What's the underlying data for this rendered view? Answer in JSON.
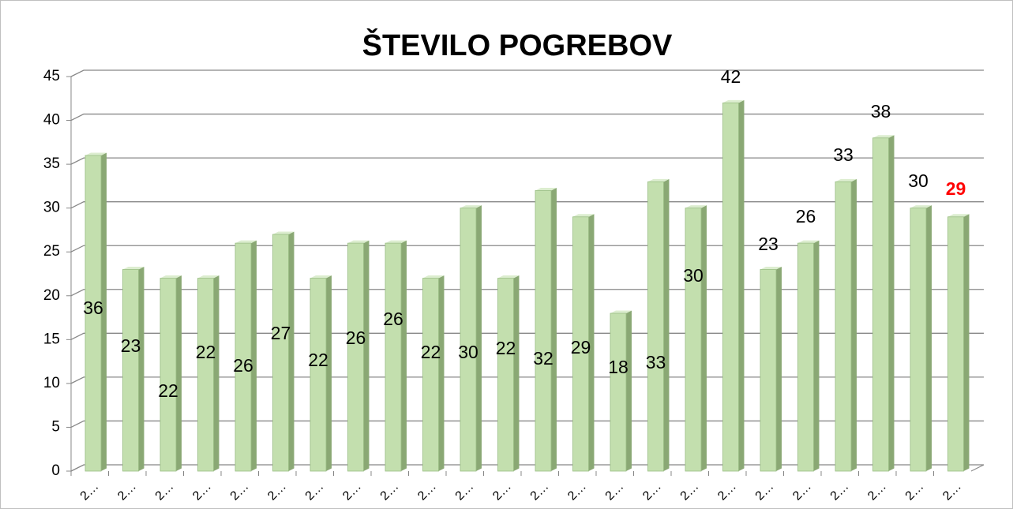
{
  "chart_data": {
    "type": "bar",
    "title": "ŠTEVILO POGREBOV",
    "categories": [
      "2…",
      "2…",
      "2…",
      "2…",
      "2…",
      "2…",
      "2…",
      "2…",
      "2…",
      "2…",
      "2…",
      "2…",
      "2…",
      "2…",
      "2…",
      "2…",
      "2…",
      "2…",
      "2…",
      "2…",
      "2…",
      "2…",
      "2…",
      "2…"
    ],
    "values": [
      36,
      23,
      22,
      22,
      26,
      27,
      22,
      26,
      26,
      22,
      30,
      22,
      32,
      29,
      18,
      33,
      30,
      42,
      23,
      26,
      33,
      38,
      30,
      29
    ],
    "color": "#c3dfae",
    "label_color": "#000000",
    "highlight_index": 23,
    "highlight_color": "#ff0000",
    "ylim": [
      0,
      45
    ],
    "yticks": [
      0,
      5,
      10,
      15,
      20,
      25,
      30,
      35,
      40,
      45
    ],
    "grid": true
  }
}
